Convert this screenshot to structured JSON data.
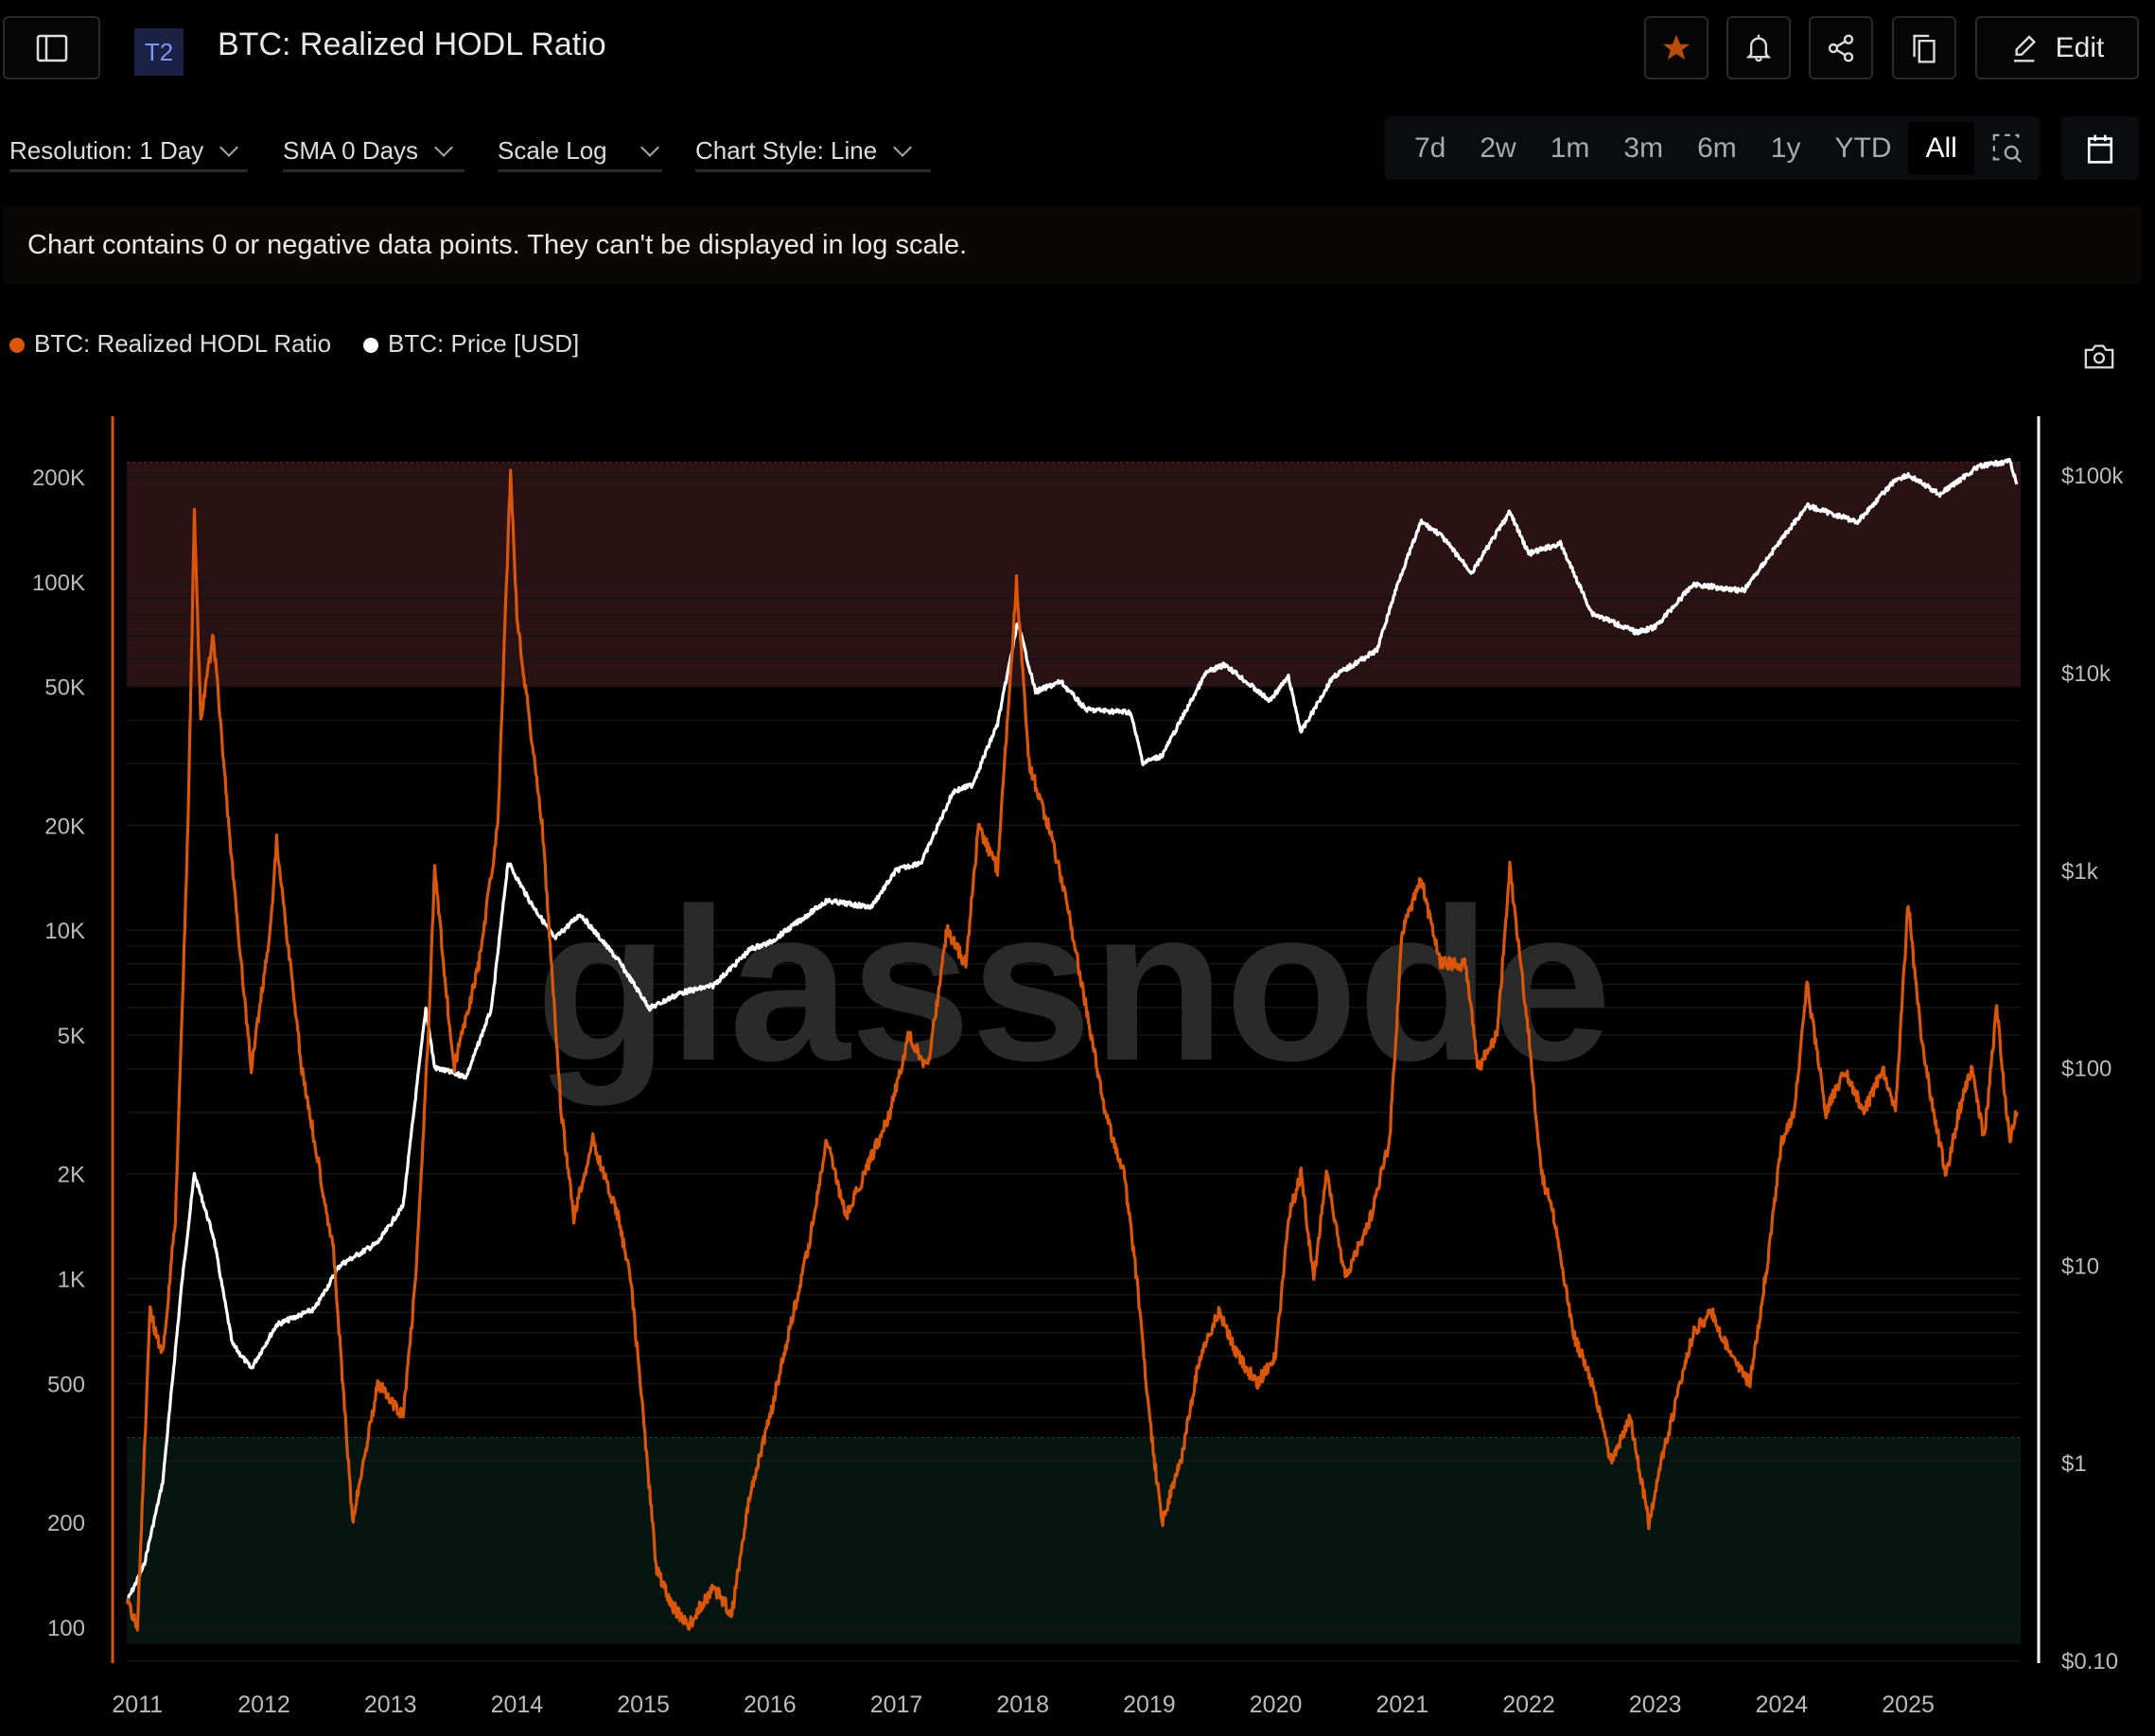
{
  "header": {
    "badge": "T2",
    "title": "BTC: Realized HODL Ratio",
    "edit_label": "Edit",
    "icons": [
      "sidebar-toggle-icon",
      "star-icon",
      "bell-icon",
      "share-icon",
      "copy-icon",
      "pencil-icon"
    ]
  },
  "toolbar": {
    "resolution": "Resolution: 1 Day",
    "sma": "SMA 0 Days",
    "scale": "Scale Log",
    "chart_style": "Chart Style: Line",
    "ranges": [
      "7d",
      "2w",
      "1m",
      "3m",
      "6m",
      "1y",
      "YTD",
      "All"
    ],
    "active_range": "All"
  },
  "banner": "Chart contains 0 or negative data points. They can't be displayed in log scale.",
  "colors": {
    "hodl": "#d9560b",
    "price": "#ffffff",
    "star": "#b84e09",
    "red_band": "#2a1214",
    "green_band": "#06150f"
  },
  "watermark": "glassnode",
  "chart_data": {
    "type": "line",
    "title": "BTC: Realized HODL Ratio",
    "legend": [
      "BTC: Realized HODL Ratio",
      "BTC: Price [USD]"
    ],
    "legend_position": "top-left",
    "x_ticks": [
      "2011",
      "2012",
      "2013",
      "2014",
      "2015",
      "2016",
      "2017",
      "2018",
      "2019",
      "2020",
      "2021",
      "2022",
      "2023",
      "2024",
      "2025"
    ],
    "x_range": [
      2010.9,
      2025.86
    ],
    "y_left": {
      "scale": "log",
      "ticks": [
        {
          "v": 100,
          "l": "100"
        },
        {
          "v": 200,
          "l": "200"
        },
        {
          "v": 500,
          "l": "500"
        },
        {
          "v": 1000,
          "l": "1K"
        },
        {
          "v": 2000,
          "l": "2K"
        },
        {
          "v": 5000,
          "l": "5K"
        },
        {
          "v": 10000,
          "l": "10K"
        },
        {
          "v": 20000,
          "l": "20K"
        },
        {
          "v": 50000,
          "l": "50K"
        },
        {
          "v": 100000,
          "l": "100K"
        },
        {
          "v": 200000,
          "l": "200K"
        }
      ]
    },
    "y_right": {
      "scale": "log",
      "ticks": [
        {
          "v": 0.1,
          "l": "$0.10"
        },
        {
          "v": 1,
          "l": "$1"
        },
        {
          "v": 10,
          "l": "$10"
        },
        {
          "v": 100,
          "l": "$100"
        },
        {
          "v": 1000,
          "l": "$1k"
        },
        {
          "v": 10000,
          "l": "$10k"
        },
        {
          "v": 100000,
          "l": "$100k"
        }
      ]
    },
    "bands": [
      {
        "name": "red-zone",
        "from": 50000,
        "to": 220000
      },
      {
        "name": "green-zone",
        "from": 90,
        "to": 350
      }
    ],
    "series": [
      {
        "name": "BTC: Realized HODL Ratio",
        "axis": "left",
        "points": [
          [
            2010.92,
            120
          ],
          [
            2011.0,
            100
          ],
          [
            2011.1,
            800
          ],
          [
            2011.2,
            600
          ],
          [
            2011.3,
            1500
          ],
          [
            2011.4,
            20000
          ],
          [
            2011.45,
            160000
          ],
          [
            2011.5,
            40000
          ],
          [
            2011.6,
            70000
          ],
          [
            2011.75,
            15000
          ],
          [
            2011.9,
            4000
          ],
          [
            2012.05,
            10000
          ],
          [
            2012.1,
            18000
          ],
          [
            2012.3,
            4000
          ],
          [
            2012.4,
            2500
          ],
          [
            2012.55,
            1200
          ],
          [
            2012.7,
            200
          ],
          [
            2012.9,
            500
          ],
          [
            2013.1,
            400
          ],
          [
            2013.2,
            1000
          ],
          [
            2013.3,
            5000
          ],
          [
            2013.35,
            15000
          ],
          [
            2013.5,
            4000
          ],
          [
            2013.7,
            8000
          ],
          [
            2013.85,
            20000
          ],
          [
            2013.95,
            210000
          ],
          [
            2014.0,
            80000
          ],
          [
            2014.1,
            40000
          ],
          [
            2014.2,
            20000
          ],
          [
            2014.35,
            3000
          ],
          [
            2014.45,
            1500
          ],
          [
            2014.6,
            2500
          ],
          [
            2014.8,
            1500
          ],
          [
            2014.9,
            1000
          ],
          [
            2015.0,
            400
          ],
          [
            2015.1,
            150
          ],
          [
            2015.2,
            120
          ],
          [
            2015.35,
            100
          ],
          [
            2015.55,
            130
          ],
          [
            2015.7,
            110
          ],
          [
            2015.85,
            250
          ],
          [
            2016.0,
            400
          ],
          [
            2016.15,
            700
          ],
          [
            2016.3,
            1200
          ],
          [
            2016.45,
            2500
          ],
          [
            2016.6,
            1500
          ],
          [
            2016.75,
            2000
          ],
          [
            2016.95,
            3000
          ],
          [
            2017.1,
            5000
          ],
          [
            2017.25,
            4000
          ],
          [
            2017.4,
            10000
          ],
          [
            2017.55,
            8000
          ],
          [
            2017.65,
            20000
          ],
          [
            2017.8,
            15000
          ],
          [
            2017.95,
            100000
          ],
          [
            2018.05,
            30000
          ],
          [
            2018.2,
            20000
          ],
          [
            2018.35,
            12000
          ],
          [
            2018.5,
            6000
          ],
          [
            2018.65,
            3000
          ],
          [
            2018.8,
            2000
          ],
          [
            2018.9,
            1000
          ],
          [
            2019.0,
            400
          ],
          [
            2019.1,
            200
          ],
          [
            2019.25,
            300
          ],
          [
            2019.4,
            600
          ],
          [
            2019.55,
            800
          ],
          [
            2019.7,
            600
          ],
          [
            2019.85,
            500
          ],
          [
            2020.0,
            600
          ],
          [
            2020.1,
            1500
          ],
          [
            2020.2,
            2000
          ],
          [
            2020.3,
            1000
          ],
          [
            2020.4,
            2000
          ],
          [
            2020.55,
            1000
          ],
          [
            2020.75,
            1500
          ],
          [
            2020.9,
            2500
          ],
          [
            2021.0,
            10000
          ],
          [
            2021.15,
            14000
          ],
          [
            2021.3,
            8000
          ],
          [
            2021.5,
            8000
          ],
          [
            2021.6,
            4000
          ],
          [
            2021.75,
            5000
          ],
          [
            2021.85,
            15000
          ],
          [
            2022.0,
            5000
          ],
          [
            2022.1,
            2000
          ],
          [
            2022.2,
            1500
          ],
          [
            2022.35,
            700
          ],
          [
            2022.5,
            500
          ],
          [
            2022.65,
            300
          ],
          [
            2022.8,
            400
          ],
          [
            2022.95,
            200
          ],
          [
            2023.05,
            300
          ],
          [
            2023.2,
            500
          ],
          [
            2023.3,
            700
          ],
          [
            2023.45,
            800
          ],
          [
            2023.6,
            600
          ],
          [
            2023.75,
            500
          ],
          [
            2023.9,
            1200
          ],
          [
            2024.0,
            2500
          ],
          [
            2024.1,
            3000
          ],
          [
            2024.2,
            7000
          ],
          [
            2024.35,
            3000
          ],
          [
            2024.5,
            4000
          ],
          [
            2024.65,
            3000
          ],
          [
            2024.8,
            4000
          ],
          [
            2024.9,
            3000
          ],
          [
            2025.0,
            12000
          ],
          [
            2025.1,
            5000
          ],
          [
            2025.2,
            3000
          ],
          [
            2025.3,
            2000
          ],
          [
            2025.4,
            3000
          ],
          [
            2025.5,
            4000
          ],
          [
            2025.6,
            2500
          ],
          [
            2025.7,
            6000
          ],
          [
            2025.8,
            2500
          ],
          [
            2025.86,
            3000
          ]
        ]
      },
      {
        "name": "BTC: Price [USD]",
        "axis": "right",
        "points": [
          [
            2010.92,
            0.2
          ],
          [
            2011.05,
            0.3
          ],
          [
            2011.2,
            0.8
          ],
          [
            2011.35,
            8
          ],
          [
            2011.45,
            29
          ],
          [
            2011.6,
            14
          ],
          [
            2011.75,
            4
          ],
          [
            2011.9,
            3
          ],
          [
            2012.1,
            5
          ],
          [
            2012.4,
            6
          ],
          [
            2012.6,
            10
          ],
          [
            2012.9,
            13
          ],
          [
            2013.1,
            20
          ],
          [
            2013.28,
            200
          ],
          [
            2013.35,
            100
          ],
          [
            2013.6,
            90
          ],
          [
            2013.8,
            200
          ],
          [
            2013.93,
            1100
          ],
          [
            2014.1,
            700
          ],
          [
            2014.3,
            450
          ],
          [
            2014.5,
            600
          ],
          [
            2014.8,
            350
          ],
          [
            2015.05,
            200
          ],
          [
            2015.3,
            240
          ],
          [
            2015.55,
            260
          ],
          [
            2015.85,
            400
          ],
          [
            2016.0,
            430
          ],
          [
            2016.45,
            700
          ],
          [
            2016.8,
            650
          ],
          [
            2017.0,
            1000
          ],
          [
            2017.2,
            1100
          ],
          [
            2017.45,
            2500
          ],
          [
            2017.6,
            2700
          ],
          [
            2017.8,
            5500
          ],
          [
            2017.96,
            18000
          ],
          [
            2018.1,
            8000
          ],
          [
            2018.3,
            9000
          ],
          [
            2018.5,
            6500
          ],
          [
            2018.85,
            6300
          ],
          [
            2018.95,
            3500
          ],
          [
            2019.1,
            3800
          ],
          [
            2019.45,
            10000
          ],
          [
            2019.6,
            11000
          ],
          [
            2019.95,
            7200
          ],
          [
            2020.1,
            9500
          ],
          [
            2020.2,
            5000
          ],
          [
            2020.45,
            9500
          ],
          [
            2020.8,
            13000
          ],
          [
            2020.97,
            29000
          ],
          [
            2021.15,
            58000
          ],
          [
            2021.3,
            50000
          ],
          [
            2021.55,
            32000
          ],
          [
            2021.85,
            65000
          ],
          [
            2022.0,
            40000
          ],
          [
            2022.25,
            45000
          ],
          [
            2022.5,
            20000
          ],
          [
            2022.85,
            16000
          ],
          [
            2023.0,
            17000
          ],
          [
            2023.3,
            28000
          ],
          [
            2023.7,
            26000
          ],
          [
            2023.95,
            43000
          ],
          [
            2024.2,
            70000
          ],
          [
            2024.6,
            58000
          ],
          [
            2024.9,
            95000
          ],
          [
            2025.0,
            100000
          ],
          [
            2025.25,
            80000
          ],
          [
            2025.55,
            110000
          ],
          [
            2025.8,
            118000
          ],
          [
            2025.86,
            90000
          ]
        ]
      }
    ]
  }
}
